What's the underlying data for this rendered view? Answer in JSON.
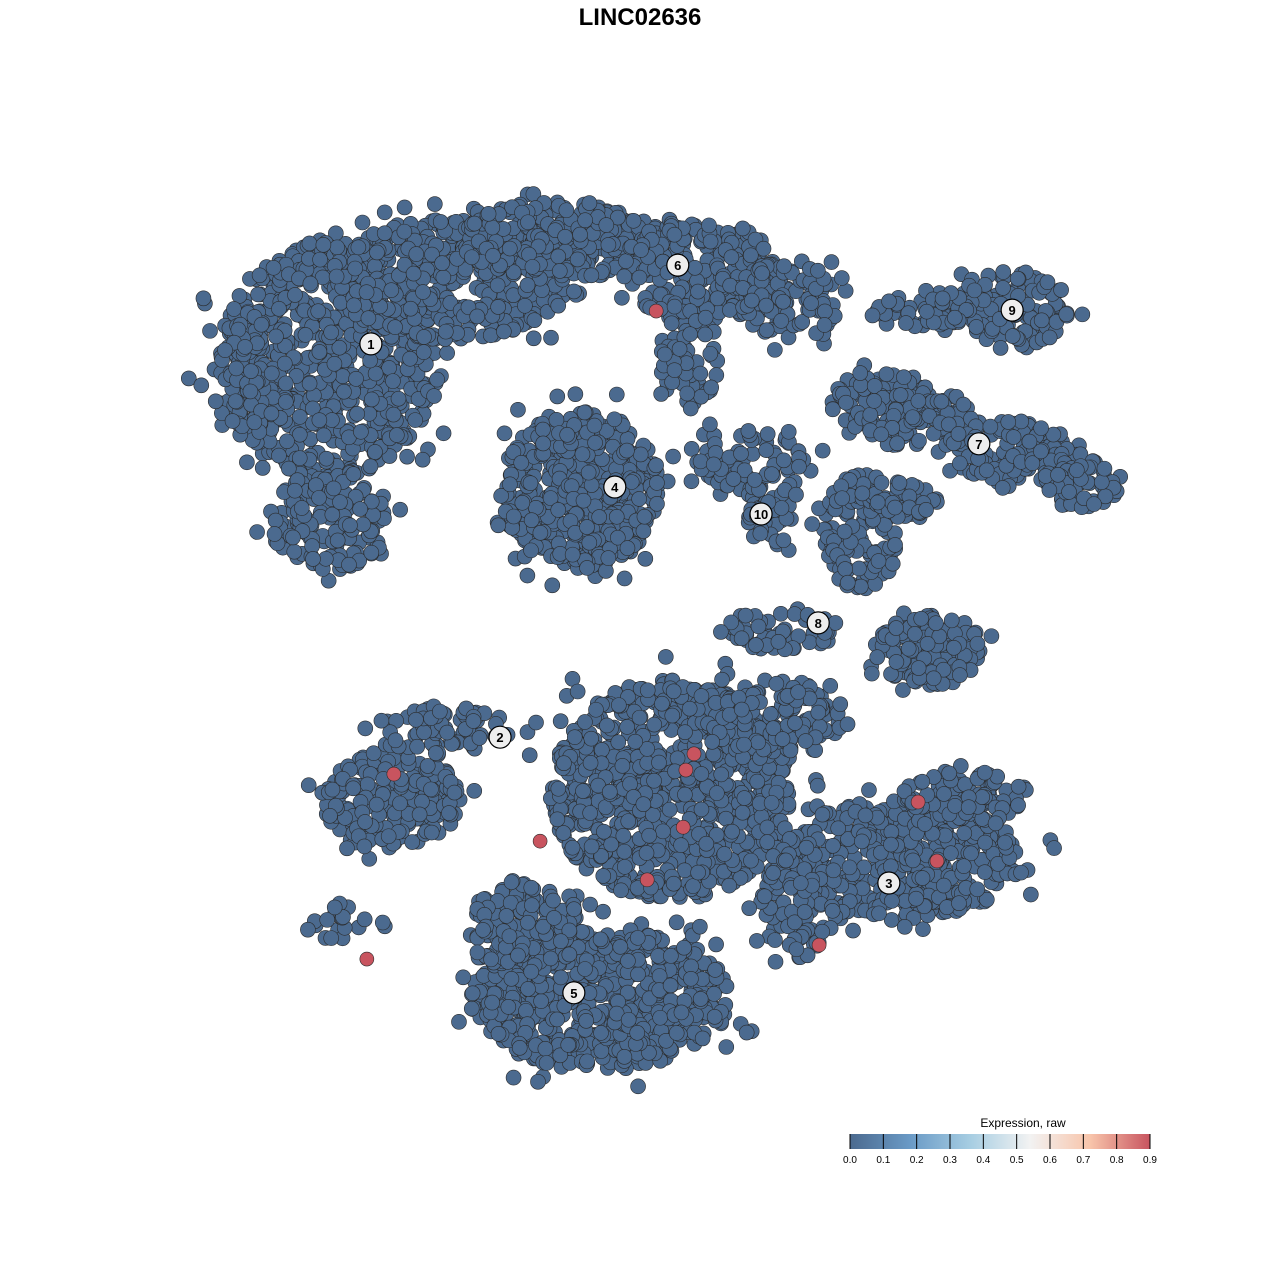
{
  "chart_data": {
    "type": "scatter",
    "title": "LINC02636",
    "xlabel": "",
    "ylabel": "",
    "axes_visible": false,
    "grid": false,
    "point_color_default": "#4B6A8F",
    "cluster_labels": [
      {
        "label": "1",
        "x": -5.98,
        "y": 6.58
      },
      {
        "label": "2",
        "x": -3.11,
        "y": -2.16
      },
      {
        "label": "3",
        "x": 5.53,
        "y": -5.4
      },
      {
        "label": "4",
        "x": -0.56,
        "y": 3.4
      },
      {
        "label": "5",
        "x": -1.47,
        "y": -7.84
      },
      {
        "label": "6",
        "x": 0.84,
        "y": 8.33
      },
      {
        "label": "7",
        "x": 7.53,
        "y": 4.36
      },
      {
        "label": "8",
        "x": 3.96,
        "y": 0.38
      },
      {
        "label": "9",
        "x": 8.27,
        "y": 7.33
      },
      {
        "label": "10",
        "x": 2.69,
        "y": 2.8
      }
    ],
    "expressing_points": [
      {
        "x": 0.36,
        "y": 7.31,
        "value": 0.9
      },
      {
        "x": -5.47,
        "y": -2.98,
        "value": 0.9
      },
      {
        "x": -2.22,
        "y": -4.47,
        "value": 0.9
      },
      {
        "x": 1.2,
        "y": -2.53,
        "value": 0.9
      },
      {
        "x": 1.02,
        "y": -2.89,
        "value": 0.9
      },
      {
        "x": 0.96,
        "y": -4.16,
        "value": 0.9
      },
      {
        "x": 0.16,
        "y": -5.33,
        "value": 0.9
      },
      {
        "x": 6.18,
        "y": -3.6,
        "value": 0.9
      },
      {
        "x": 6.6,
        "y": -4.91,
        "value": 0.9
      },
      {
        "x": 3.98,
        "y": -6.78,
        "value": 0.9
      },
      {
        "x": -6.07,
        "y": -7.09,
        "value": 0.9
      }
    ],
    "colorbar": {
      "title": "Expression, raw",
      "ticks": [
        "0.0",
        "0.1",
        "0.2",
        "0.3",
        "0.4",
        "0.5",
        "0.6",
        "0.7",
        "0.8",
        "0.9"
      ],
      "range": [
        0,
        0.9
      ],
      "colors": [
        "#4B6A8F",
        "#6A9AC6",
        "#A6CDE2",
        "#F2F2F2",
        "#F8C5AB",
        "#C8545F"
      ],
      "placement": "bottom-right"
    }
  }
}
